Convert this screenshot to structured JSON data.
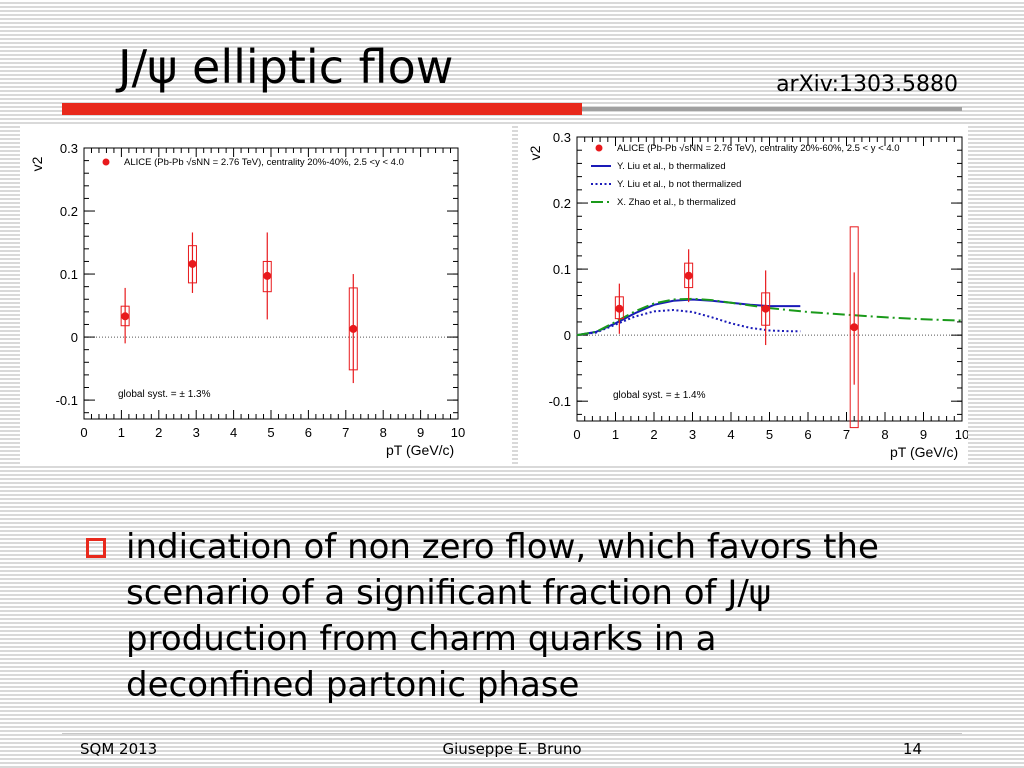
{
  "slide": {
    "title": "J/ψ elliptic flow",
    "ref": "arXiv:1303.5880",
    "bullet": "indication of non zero flow, which favors the scenario of a significant fraction of J/ψ production from charm quarks in a deconfined partonic phase",
    "footer": {
      "left": "SQM 2013",
      "center": "Giuseppe E. Bruno",
      "right": "14"
    },
    "colors": {
      "accent": "#e8291c",
      "rule_gray": "#a0a0a0"
    }
  },
  "chart_data": [
    {
      "type": "scatter",
      "ylabel": "v2",
      "xlabel": "pT (GeV/c)",
      "xlim": [
        0,
        10
      ],
      "ylim": [
        -0.13,
        0.3
      ],
      "xticks": [
        0,
        1,
        2,
        3,
        4,
        5,
        6,
        7,
        8,
        9,
        10
      ],
      "xtick_labels": [
        "0",
        "1",
        "2",
        "3",
        "4",
        "5",
        "6",
        "7",
        "8",
        "9",
        "10"
      ],
      "yticks": [
        -0.1,
        0,
        0.1,
        0.2,
        0.3
      ],
      "ytick_labels": [
        "-0.1",
        "0",
        "0.1",
        "0.2",
        "0.3"
      ],
      "zero_line": true,
      "legend_loc": "top-left",
      "series": [
        {
          "name": "ALICE (Pb-Pb √sNN = 2.76 TeV), centrality 20%-40%, 2.5 <y < 4.0",
          "color": "#e8191c",
          "points": [
            {
              "x": 1.1,
              "y": 0.033,
              "stat": [
                -0.01,
                0.078
              ],
              "syst": [
                0.018,
                0.049
              ]
            },
            {
              "x": 2.9,
              "y": 0.116,
              "stat": [
                0.07,
                0.166
              ],
              "syst": [
                0.086,
                0.145
              ]
            },
            {
              "x": 4.9,
              "y": 0.097,
              "stat": [
                0.028,
                0.166
              ],
              "syst": [
                0.072,
                0.12
              ]
            },
            {
              "x": 7.2,
              "y": 0.013,
              "stat": [
                -0.073,
                0.1
              ],
              "syst": [
                -0.052,
                0.078
              ]
            }
          ]
        }
      ],
      "annotation": "global syst. = ± 1.3%"
    },
    {
      "type": "scatter",
      "ylabel": "v2",
      "xlabel": "pT (GeV/c)",
      "xlim": [
        0,
        10
      ],
      "ylim": [
        -0.13,
        0.3
      ],
      "xticks": [
        0,
        1,
        2,
        3,
        4,
        5,
        6,
        7,
        8,
        9,
        10
      ],
      "xtick_labels": [
        "0",
        "1",
        "2",
        "3",
        "4",
        "5",
        "6",
        "7",
        "8",
        "9",
        "10"
      ],
      "yticks": [
        -0.1,
        0,
        0.1,
        0.2,
        0.3
      ],
      "ytick_labels": [
        "-0.1",
        "0",
        "0.1",
        "0.2",
        "0.3"
      ],
      "zero_line": true,
      "legend_loc": "top-left",
      "series": [
        {
          "name": "ALICE (Pb-Pb √sNN = 2.76 TeV), centrality 20%-60%, 2.5 < y < 4.0",
          "color": "#e8191c",
          "points": [
            {
              "x": 1.1,
              "y": 0.04,
              "stat": [
                0.002,
                0.078
              ],
              "syst": [
                0.025,
                0.058
              ]
            },
            {
              "x": 2.9,
              "y": 0.09,
              "stat": [
                0.05,
                0.13
              ],
              "syst": [
                0.072,
                0.109
              ]
            },
            {
              "x": 4.9,
              "y": 0.04,
              "stat": [
                -0.015,
                0.098
              ],
              "syst": [
                0.015,
                0.064
              ]
            },
            {
              "x": 7.2,
              "y": 0.012,
              "stat": [
                -0.075,
                0.095
              ],
              "syst": [
                -0.14,
                0.164
              ]
            }
          ]
        }
      ],
      "curves": [
        {
          "name": "Y. Liu et al., b thermalized",
          "color": "#1a1ab8",
          "style": "solid",
          "x": [
            0,
            0.5,
            1,
            1.5,
            2,
            2.5,
            3,
            3.5,
            4,
            4.5,
            5,
            5.5,
            5.8
          ],
          "y": [
            0.0,
            0.005,
            0.018,
            0.033,
            0.046,
            0.052,
            0.054,
            0.052,
            0.049,
            0.046,
            0.044,
            0.044,
            0.044
          ]
        },
        {
          "name": "Y. Liu et al., b not thermalized",
          "color": "#1a1ab8",
          "style": "dotted",
          "x": [
            0,
            0.5,
            1,
            1.5,
            2,
            2.5,
            3,
            3.5,
            4,
            4.5,
            5,
            5.5,
            5.8
          ],
          "y": [
            0.0,
            0.004,
            0.016,
            0.028,
            0.036,
            0.038,
            0.035,
            0.027,
            0.018,
            0.011,
            0.007,
            0.006,
            0.006
          ]
        },
        {
          "name": "X. Zhao et al., b thermalized",
          "color": "#1a9a1a",
          "style": "dashdot",
          "x": [
            0,
            0.5,
            1,
            1.5,
            2,
            2.5,
            3,
            3.5,
            4,
            5,
            6,
            7,
            8,
            9,
            10
          ],
          "y": [
            0.0,
            0.005,
            0.02,
            0.036,
            0.048,
            0.054,
            0.055,
            0.053,
            0.049,
            0.041,
            0.035,
            0.031,
            0.027,
            0.024,
            0.022
          ]
        }
      ],
      "annotation": "global syst. = ± 1.4%"
    }
  ]
}
